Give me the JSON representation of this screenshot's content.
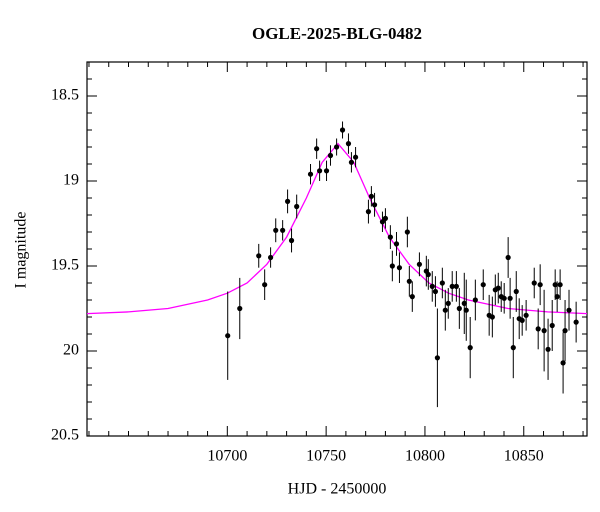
{
  "chart_data": {
    "type": "scatter",
    "title": "OGLE-2025-BLG-0482",
    "xlabel": "HJD - 2450000",
    "ylabel": "I magnitude",
    "xlim": [
      10629,
      10882
    ],
    "ylim": [
      18.3,
      20.5
    ],
    "y_inverted": true,
    "xticks": [
      10700,
      10750,
      10800,
      10850
    ],
    "yticks": [
      18.5,
      19,
      19.5,
      20,
      20.5
    ],
    "x_minor_ticks": [
      10630,
      10640,
      10650,
      10660,
      10670,
      10680,
      10690,
      10710,
      10720,
      10730,
      10740,
      10760,
      10770,
      10780,
      10790,
      10810,
      10820,
      10830,
      10840,
      10860,
      10870,
      10880
    ],
    "y_minor_ticks": [
      18.4,
      18.6,
      18.7,
      18.8,
      18.9,
      19.1,
      19.2,
      19.3,
      19.4,
      19.6,
      19.7,
      19.8,
      19.9,
      20.1,
      20.2,
      20.3,
      20.4
    ],
    "series": [
      {
        "color": "#000000",
        "x": [
          10700.2,
          10706.3,
          10715.9,
          10718.9,
          10721.9,
          10724.5,
          10728.0,
          10730.5,
          10732.5,
          10735.1,
          10742.1,
          10745.2,
          10746.7,
          10750.2,
          10752.2,
          10755.3,
          10758.3,
          10761.3,
          10762.8,
          10764.9,
          10771.4,
          10772.9,
          10774.5,
          10778.5,
          10780.0,
          10782.5,
          10783.5,
          10785.6,
          10787.1,
          10791.1,
          10792.1,
          10793.6,
          10797.2,
          10800.7,
          10801.7,
          10803.7,
          10805.3,
          10806.3,
          10808.8,
          10810.3,
          10811.8,
          10813.8,
          10815.9,
          10817.4,
          10819.9,
          10820.9,
          10822.9,
          10825.5,
          10829.5,
          10832.5,
          10834.1,
          10835.6,
          10837.1,
          10838.6,
          10840.1,
          10842.1,
          10843.1,
          10844.7,
          10846.2,
          10847.7,
          10849.2,
          10851.2,
          10855.3,
          10857.3,
          10858.3,
          10860.3,
          10862.3,
          10864.4,
          10865.9,
          10866.9,
          10868.4,
          10869.9,
          10870.9,
          10872.9,
          10876.5
        ],
        "values": [
          19.91,
          19.75,
          19.44,
          19.61,
          19.45,
          19.29,
          19.29,
          19.12,
          19.35,
          19.15,
          18.96,
          18.81,
          18.94,
          18.94,
          18.85,
          18.8,
          18.7,
          18.78,
          18.89,
          18.86,
          19.18,
          19.09,
          19.14,
          19.24,
          19.22,
          19.33,
          19.5,
          19.37,
          19.51,
          19.3,
          19.59,
          19.68,
          19.49,
          19.53,
          19.55,
          19.62,
          19.65,
          20.04,
          19.6,
          19.76,
          19.72,
          19.62,
          19.62,
          19.75,
          19.72,
          19.76,
          19.98,
          19.7,
          19.61,
          19.79,
          19.8,
          19.64,
          19.63,
          19.68,
          19.69,
          19.45,
          19.69,
          19.98,
          19.65,
          19.81,
          19.82,
          19.79,
          19.6,
          19.87,
          19.61,
          19.88,
          19.99,
          19.85,
          19.61,
          19.68,
          19.61,
          20.07,
          19.88,
          19.76,
          19.83
        ],
        "errors": [
          0.26,
          0.18,
          0.07,
          0.09,
          0.06,
          0.07,
          0.06,
          0.07,
          0.07,
          0.07,
          0.06,
          0.06,
          0.06,
          0.06,
          0.06,
          0.05,
          0.05,
          0.06,
          0.06,
          0.06,
          0.07,
          0.06,
          0.07,
          0.06,
          0.06,
          0.07,
          0.09,
          0.07,
          0.09,
          0.09,
          0.09,
          0.09,
          0.07,
          0.09,
          0.09,
          0.09,
          0.09,
          0.29,
          0.09,
          0.12,
          0.09,
          0.09,
          0.09,
          0.12,
          0.18,
          0.18,
          0.18,
          0.12,
          0.09,
          0.12,
          0.12,
          0.09,
          0.09,
          0.09,
          0.09,
          0.12,
          0.12,
          0.18,
          0.12,
          0.12,
          0.09,
          0.09,
          0.09,
          0.12,
          0.12,
          0.24,
          0.18,
          0.15,
          0.09,
          0.09,
          0.09,
          0.18,
          0.18,
          0.12,
          0.12
        ]
      }
    ],
    "model": {
      "color": "#ff00ff",
      "x": [
        10629,
        10650,
        10670,
        10690,
        10700,
        10710,
        10720,
        10730,
        10740,
        10748,
        10756,
        10764,
        10772,
        10782,
        10792,
        10802,
        10812,
        10822,
        10842,
        10862,
        10882
      ],
      "values": [
        19.78,
        19.77,
        19.75,
        19.7,
        19.66,
        19.6,
        19.49,
        19.33,
        19.1,
        18.89,
        18.78,
        18.89,
        19.1,
        19.33,
        19.49,
        19.6,
        19.66,
        19.7,
        19.75,
        19.77,
        19.78
      ]
    }
  }
}
